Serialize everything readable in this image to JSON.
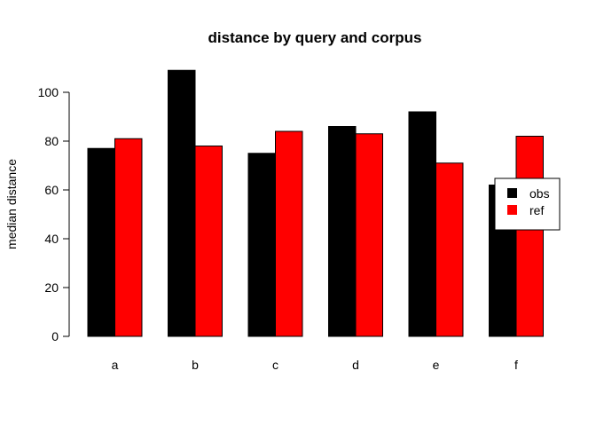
{
  "chart_data": {
    "type": "bar",
    "title": "distance by query and corpus",
    "xlabel": "",
    "ylabel": "median distance",
    "categories": [
      "a",
      "b",
      "c",
      "d",
      "e",
      "f"
    ],
    "series": [
      {
        "name": "obs",
        "values": [
          77,
          109,
          75,
          86,
          92,
          62
        ],
        "color": "#000000"
      },
      {
        "name": "ref",
        "values": [
          81,
          78,
          84,
          83,
          71,
          82
        ],
        "color": "#ff0000"
      }
    ],
    "ylim": [
      0,
      110
    ],
    "yticks": [
      0,
      20,
      40,
      60,
      80,
      100
    ],
    "grid": false,
    "legend_position": "right"
  }
}
